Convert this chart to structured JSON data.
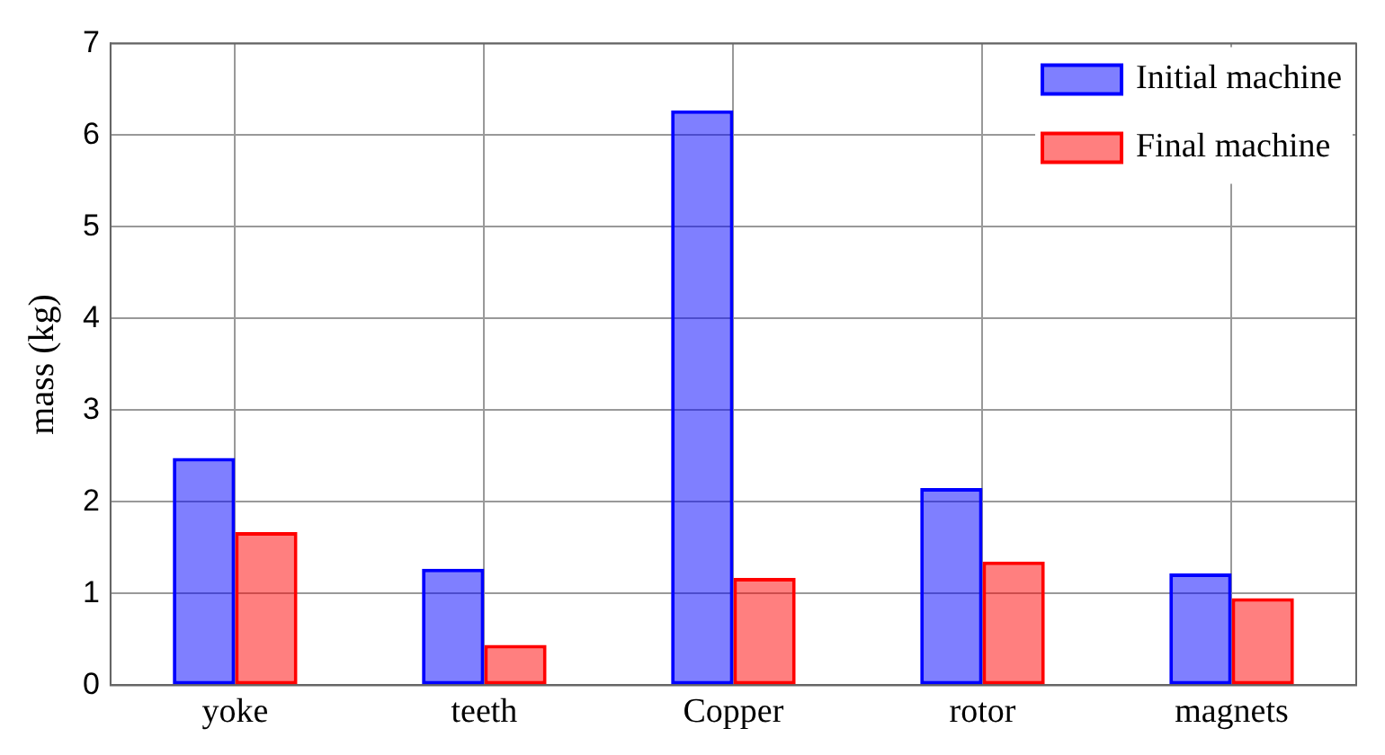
{
  "chart_data": {
    "type": "bar",
    "ylabel": "mass (kg)",
    "categories": [
      "yoke",
      "teeth",
      "Copper",
      "rotor",
      "magnets"
    ],
    "series": [
      {
        "name": "Initial machine",
        "color": "#0000ff",
        "values": [
          2.48,
          1.27,
          6.27,
          2.15,
          1.22
        ]
      },
      {
        "name": "Final machine",
        "color": "#ff0000",
        "values": [
          1.67,
          0.44,
          1.17,
          1.35,
          0.95
        ]
      }
    ],
    "ylim": [
      0,
      7
    ],
    "yticks": [
      0,
      1,
      2,
      3,
      4,
      5,
      6,
      7
    ],
    "grid": true,
    "legend": "top right"
  }
}
